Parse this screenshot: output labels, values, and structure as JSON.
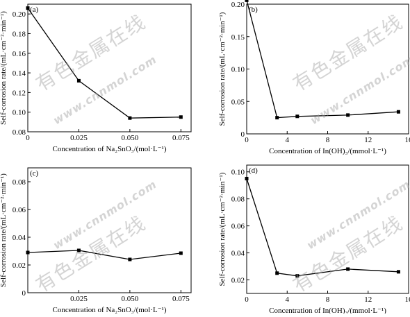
{
  "chart_data": [
    {
      "type": "line",
      "panel_label": "(a)",
      "xlabel": "Concentration of Na₂SnO₃/(mol·L⁻¹)",
      "ylabel": "Self-corrosion rate/(mL·cm⁻²·min⁻¹)",
      "xlim": [
        0,
        0.08
      ],
      "ylim": [
        0.08,
        0.21
      ],
      "xticks": [
        0,
        0.025,
        0.05,
        0.075
      ],
      "xtick_labels": [
        "0",
        "0.025",
        "0.050",
        "0.075"
      ],
      "yticks": [
        0.08,
        0.1,
        0.12,
        0.14,
        0.16,
        0.18,
        0.2
      ],
      "ytick_labels": [
        "0.08",
        "0.10",
        "0.12",
        "0.14",
        "0.16",
        "0.18",
        "0.20"
      ],
      "x": [
        0,
        0.025,
        0.05,
        0.075
      ],
      "y": [
        0.206,
        0.132,
        0.094,
        0.095
      ]
    },
    {
      "type": "line",
      "panel_label": "(b)",
      "xlabel": "Concentration of In(OH)₃/(mmol·L⁻¹)",
      "ylabel": "Self-corrosion rate/(mL·cm⁻²·min⁻¹)",
      "xlim": [
        0,
        16
      ],
      "ylim": [
        0,
        0.2
      ],
      "xticks": [
        0,
        4,
        8,
        12,
        16
      ],
      "xtick_labels": [
        "0",
        "4",
        "8",
        "12",
        "16"
      ],
      "yticks": [
        0,
        0.05,
        0.1,
        0.15,
        0.2
      ],
      "ytick_labels": [
        "0",
        "0.05",
        "0.10",
        "0.15",
        "0.20"
      ],
      "x": [
        0,
        3,
        5,
        10,
        15
      ],
      "y": [
        0.206,
        0.025,
        0.027,
        0.029,
        0.034
      ]
    },
    {
      "type": "line",
      "panel_label": "(c)",
      "xlabel": "Concentration of Na₂SnO₃/(mol·L⁻¹)",
      "ylabel": "Self-corrosion rate/(mL·cm⁻²·min⁻¹)",
      "xlim": [
        0,
        0.08
      ],
      "ylim": [
        0,
        0.09
      ],
      "xticks": [
        0.025,
        0.05,
        0.075
      ],
      "xtick_labels": [
        "0.025",
        "0.050",
        "0.075"
      ],
      "yticks": [
        0,
        0.02,
        0.04,
        0.06,
        0.08
      ],
      "ytick_labels": [
        "0",
        "0.02",
        "0.04",
        "0.06",
        "0.08"
      ],
      "x": [
        0,
        0.025,
        0.05,
        0.075
      ],
      "y": [
        0.029,
        0.0305,
        0.024,
        0.0285
      ]
    },
    {
      "type": "line",
      "panel_label": "(d)",
      "xlabel": "Concentration of In(OH)₃/(mmol·L⁻¹)",
      "ylabel": "Self-corrosion rate/(mL·cm⁻²·min⁻¹)",
      "xlim": [
        0,
        16
      ],
      "ylim": [
        0.01,
        0.105
      ],
      "xticks": [
        0,
        4,
        8,
        12,
        16
      ],
      "xtick_labels": [
        "0",
        "4",
        "8",
        "12",
        "16"
      ],
      "yticks": [
        0.02,
        0.04,
        0.06,
        0.08,
        0.1
      ],
      "ytick_labels": [
        "0.02",
        "0.04",
        "0.06",
        "0.08",
        "0.10"
      ],
      "x": [
        0,
        3,
        5,
        10,
        15
      ],
      "y": [
        0.095,
        0.025,
        0.023,
        0.028,
        0.026
      ]
    }
  ],
  "watermark": {
    "text_cn": "有色金属在线",
    "url": "www.cnnmol.com"
  },
  "colors": {
    "line": "#000000",
    "watermark": "#a0a0a0"
  }
}
